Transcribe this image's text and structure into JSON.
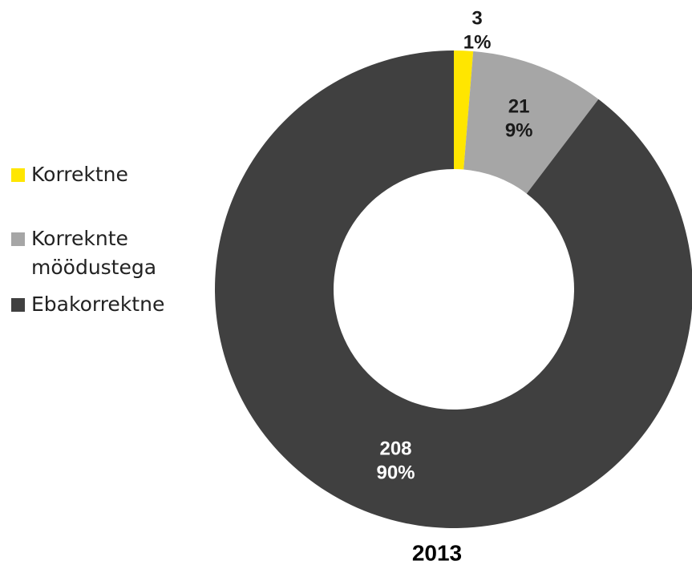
{
  "chart_data": {
    "type": "donut",
    "title": "2013",
    "categories": [
      "Korrektne",
      "Korreknte möödustega",
      "Ebakorrektne"
    ],
    "values": [
      3,
      21,
      208
    ],
    "percents": [
      1,
      9,
      90
    ],
    "percent_labels": [
      "1%",
      "9%",
      "90%"
    ],
    "colors": [
      "#ffe600",
      "#a6a6a6",
      "#404040"
    ],
    "label_colors": [
      "#1a1a1a",
      "#1a1a1a",
      "#ffffff"
    ],
    "legend": "left"
  }
}
